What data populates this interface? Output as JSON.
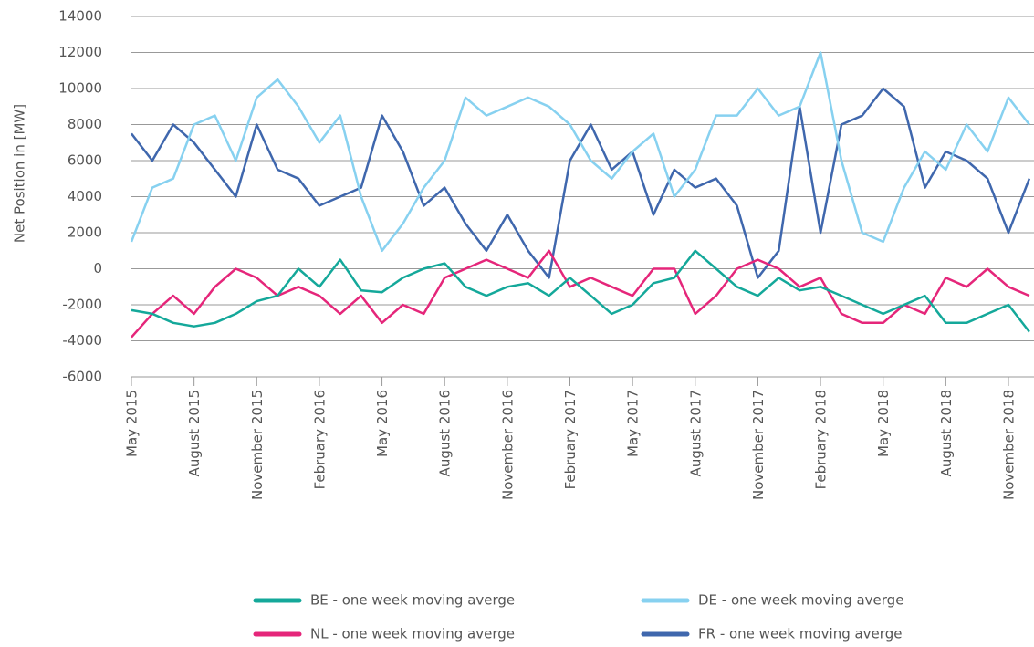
{
  "chart_data": {
    "type": "line",
    "y_label": "Net Position in [MW]",
    "x": [
      "2015-05",
      "2015-06",
      "2015-07",
      "2015-08",
      "2015-09",
      "2015-10",
      "2015-11",
      "2015-12",
      "2016-01",
      "2016-02",
      "2016-03",
      "2016-04",
      "2016-05",
      "2016-06",
      "2016-07",
      "2016-08",
      "2016-09",
      "2016-10",
      "2016-11",
      "2016-12",
      "2017-01",
      "2017-02",
      "2017-03",
      "2017-04",
      "2017-05",
      "2017-06",
      "2017-07",
      "2017-08",
      "2017-09",
      "2017-10",
      "2017-11",
      "2017-12",
      "2018-01",
      "2018-02",
      "2018-03",
      "2018-04",
      "2018-05",
      "2018-06",
      "2018-07",
      "2018-08",
      "2018-09",
      "2018-10",
      "2018-11",
      "2018-12"
    ],
    "xticks": [
      {
        "value": "2015-05",
        "label": "May 2015"
      },
      {
        "value": "2015-08",
        "label": "August 2015"
      },
      {
        "value": "2015-11",
        "label": "November 2015"
      },
      {
        "value": "2016-02",
        "label": "February 2016"
      },
      {
        "value": "2016-05",
        "label": "May 2016"
      },
      {
        "value": "2016-08",
        "label": "August 2016"
      },
      {
        "value": "2016-11",
        "label": "November 2016"
      },
      {
        "value": "2017-02",
        "label": "February 2017"
      },
      {
        "value": "2017-05",
        "label": "May 2017"
      },
      {
        "value": "2017-08",
        "label": "August 2017"
      },
      {
        "value": "2017-11",
        "label": "November 2017"
      },
      {
        "value": "2018-02",
        "label": "February 2018"
      },
      {
        "value": "2018-05",
        "label": "May 2018"
      },
      {
        "value": "2018-08",
        "label": "August 2018"
      },
      {
        "value": "2018-11",
        "label": "November 2018"
      }
    ],
    "ylim": [
      -6000,
      14000
    ],
    "yticks": [
      -6000,
      -4000,
      -2000,
      0,
      2000,
      4000,
      6000,
      8000,
      10000,
      12000,
      14000
    ],
    "grid": true,
    "series": [
      {
        "name": "BE - one week moving averge",
        "color": "#14a89a",
        "values": [
          -2300,
          -2500,
          -3000,
          -3200,
          -3000,
          -2500,
          -1800,
          -1500,
          0,
          -1000,
          500,
          -1200,
          -1300,
          -500,
          0,
          300,
          -1000,
          -1500,
          -1000,
          -800,
          -1500,
          -500,
          -1500,
          -2500,
          -2000,
          -800,
          -500,
          1000,
          0,
          -1000,
          -1500,
          -500,
          -1200,
          -1000,
          -1500,
          -2000,
          -2500,
          -2000,
          -1500,
          -3000,
          -3000,
          -2500,
          -2000,
          -3500
        ]
      },
      {
        "name": "NL - one week moving averge",
        "color": "#e5267a",
        "values": [
          -3800,
          -2500,
          -1500,
          -2500,
          -1000,
          0,
          -500,
          -1500,
          -1000,
          -1500,
          -2500,
          -1500,
          -3000,
          -2000,
          -2500,
          -500,
          0,
          500,
          0,
          -500,
          1000,
          -1000,
          -500,
          -1000,
          -1500,
          0,
          0,
          -2500,
          -1500,
          0,
          500,
          0,
          -1000,
          -500,
          -2500,
          -3000,
          -3000,
          -2000,
          -2500,
          -500,
          -1000,
          0,
          -1000,
          -1500
        ]
      },
      {
        "name": "DE - one week moving averge",
        "color": "#87d1f0",
        "values": [
          1500,
          4500,
          5000,
          8000,
          8500,
          6000,
          9500,
          10500,
          9000,
          7000,
          8500,
          4000,
          1000,
          2500,
          4500,
          6000,
          9500,
          8500,
          9000,
          9500,
          9000,
          8000,
          6000,
          5000,
          6500,
          7500,
          4000,
          5500,
          8500,
          8500,
          10000,
          8500,
          9000,
          12000,
          6000,
          2000,
          1500,
          4500,
          6500,
          5500,
          8000,
          6500,
          9500,
          8000
        ]
      },
      {
        "name": "FR - one week moving averge",
        "color": "#3f67ad",
        "values": [
          7500,
          6000,
          8000,
          7000,
          5500,
          4000,
          8000,
          5500,
          5000,
          3500,
          4000,
          4500,
          8500,
          6500,
          3500,
          4500,
          2500,
          1000,
          3000,
          1000,
          -500,
          6000,
          8000,
          5500,
          6500,
          3000,
          5500,
          4500,
          5000,
          3500,
          -500,
          1000,
          9000,
          2000,
          8000,
          8500,
          10000,
          9000,
          4500,
          6500,
          6000,
          5000,
          2000,
          5000
        ]
      }
    ]
  }
}
